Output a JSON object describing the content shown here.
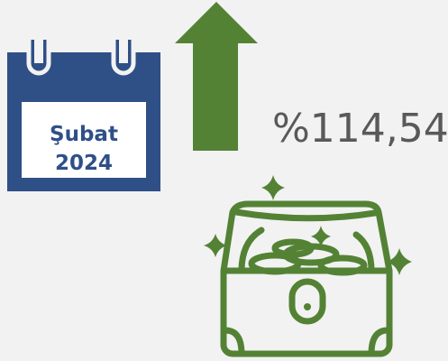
{
  "calendar": {
    "month": "Şubat",
    "year": "2024"
  },
  "change": {
    "value": "%114,54"
  }
}
